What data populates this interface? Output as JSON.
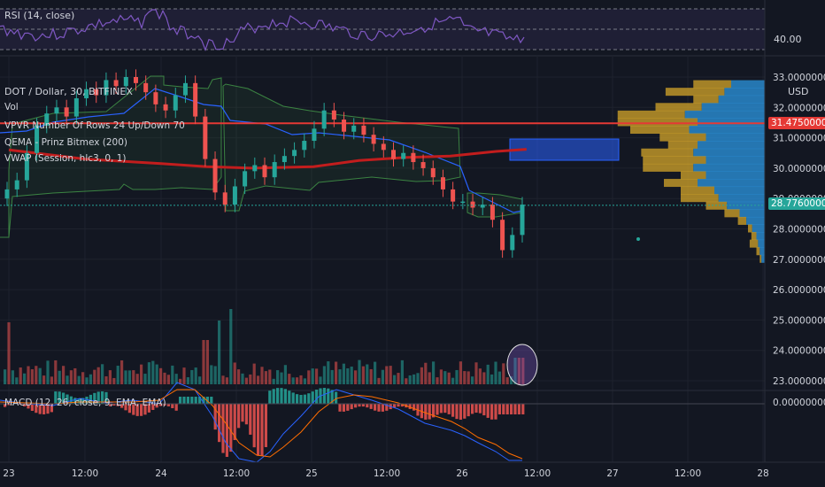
{
  "rsi": {
    "title": "RSI (14, close)",
    "level_label": "40.00"
  },
  "main": {
    "symbol_title": "DOT / Dollar, 30, BITFINEX",
    "indicators": [
      "Vol",
      "VPVR Number Of Rows 24 Up/Down 70",
      "QEMA - Prinz Bitmex (200)",
      "VWAP (Session, hlc3, 0, 1)"
    ],
    "currency": "USD"
  },
  "macd": {
    "title": "MACD (12, 26, close, 9, EMA, EMA)",
    "zero_label": "0.00000000"
  },
  "price_axis": {
    "ticks": [
      "33.00000000",
      "32.00000000",
      "31.00000000",
      "30.00000000",
      "29.00000000",
      "28.00000000",
      "27.00000000",
      "26.00000000",
      "25.00000000",
      "24.00000000",
      "23.00000000"
    ],
    "red_line_label": "31.47500000",
    "last_price_label": "28.77600000"
  },
  "time_axis": {
    "ticks": [
      "23",
      "12:00",
      "24",
      "12:00",
      "25",
      "12:00",
      "26",
      "12:00",
      "27",
      "12:00",
      "28"
    ]
  },
  "colors": {
    "background": "#131722",
    "up": "#26a69a",
    "down": "#ef5350",
    "vpvr_up": "#2a8fd6",
    "vpvr_down": "#d4a52a",
    "qema": "#c21d1d",
    "rsi_line": "#7e57c2",
    "hline": "#e53935",
    "last_price": "#26a69a"
  },
  "chart_data": {
    "type": "candlestick",
    "title": "DOT / Dollar, 30, BITFINEX",
    "x_range": [
      "23",
      "28"
    ],
    "y_range": [
      22.8,
      33.2
    ],
    "horizontal_line": 31.475,
    "last_price": 28.776,
    "qema_points": [
      [
        0,
        30.6
      ],
      [
        0.5,
        30.3
      ],
      [
        1,
        30.15
      ],
      [
        1.3,
        30.05
      ],
      [
        1.6,
        30.0
      ],
      [
        2,
        30.05
      ],
      [
        2.3,
        30.25
      ],
      [
        2.6,
        30.35
      ],
      [
        2.9,
        30.4
      ],
      [
        3.2,
        30.55
      ],
      [
        3.4,
        30.62
      ]
    ],
    "candles_close": [
      29.3,
      29.6,
      30.5,
      31.4,
      31.8,
      32.0,
      31.7,
      32.3,
      32.6,
      32.4,
      32.9,
      32.7,
      33.0,
      32.8,
      32.5,
      32.1,
      31.9,
      32.4,
      32.8,
      31.7,
      30.3,
      29.2,
      28.8,
      29.4,
      29.9,
      30.1,
      29.7,
      30.2,
      30.4,
      30.6,
      30.9,
      31.3,
      31.9,
      31.6,
      31.2,
      31.4,
      31.1,
      30.8,
      30.6,
      30.3,
      30.5,
      30.2,
      30.0,
      29.7,
      29.3,
      28.9,
      28.9,
      28.7,
      28.8,
      28.3,
      27.3,
      27.8,
      28.8
    ],
    "vpvr_rows": [
      {
        "price": 32.75,
        "up": 40,
        "down": 45
      },
      {
        "price": 32.5,
        "up": 48,
        "down": 70
      },
      {
        "price": 32.25,
        "up": 55,
        "down": 30
      },
      {
        "price": 32.0,
        "up": 75,
        "down": 55
      },
      {
        "price": 31.75,
        "up": 95,
        "down": 80
      },
      {
        "price": 31.5,
        "up": 80,
        "down": 95
      },
      {
        "price": 31.25,
        "up": 90,
        "down": 70
      },
      {
        "price": 31.0,
        "up": 70,
        "down": 55
      },
      {
        "price": 30.75,
        "up": 80,
        "down": 35
      },
      {
        "price": 30.5,
        "up": 85,
        "down": 62
      },
      {
        "price": 30.25,
        "up": 70,
        "down": 75
      },
      {
        "price": 30.0,
        "up": 85,
        "down": 60
      },
      {
        "price": 29.75,
        "up": 70,
        "down": 30
      },
      {
        "price": 29.5,
        "up": 80,
        "down": 40
      },
      {
        "price": 29.25,
        "up": 60,
        "down": 40
      },
      {
        "price": 29.0,
        "up": 55,
        "down": 45
      },
      {
        "price": 28.75,
        "up": 45,
        "down": 25
      },
      {
        "price": 28.5,
        "up": 30,
        "down": 18
      },
      {
        "price": 28.25,
        "up": 22,
        "down": 10
      },
      {
        "price": 28.0,
        "up": 15,
        "down": 5
      },
      {
        "price": 27.75,
        "up": 10,
        "down": 6
      },
      {
        "price": 27.5,
        "up": 8,
        "down": 10
      },
      {
        "price": 27.25,
        "up": 6,
        "down": 4
      },
      {
        "price": 27.0,
        "up": 4,
        "down": 2
      }
    ]
  }
}
